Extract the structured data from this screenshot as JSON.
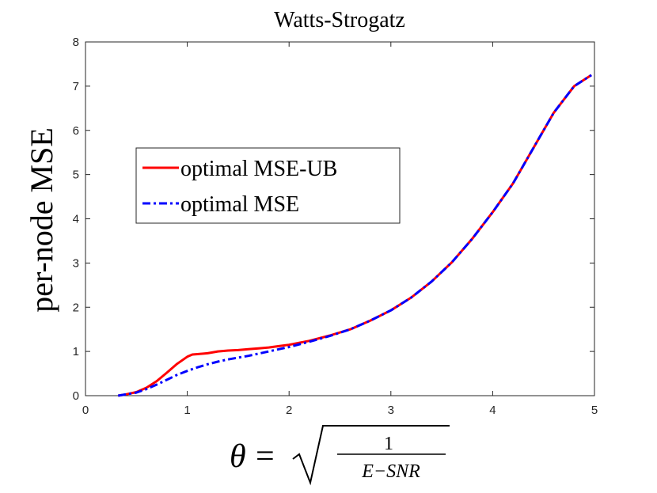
{
  "chart_data": {
    "type": "line",
    "title": "Watts-Strogatz",
    "ylabel": "per-node MSE",
    "xlabel": {
      "theta": "θ",
      "equals": "=",
      "numerator": "1",
      "denominator": "E−SNR"
    },
    "xlim": [
      0,
      5
    ],
    "ylim": [
      0,
      8
    ],
    "xticks": [
      "0",
      "1",
      "2",
      "3",
      "4",
      "5"
    ],
    "yticks": [
      "0",
      "1",
      "2",
      "3",
      "4",
      "5",
      "6",
      "7",
      "8"
    ],
    "legend": {
      "placement": "center-left",
      "entries": [
        "optimal MSE-UB",
        "optimal MSE"
      ]
    },
    "series": [
      {
        "name": "optimal MSE-UB",
        "color": "#ff0000",
        "style": "solid",
        "x": [
          0.32,
          0.4,
          0.5,
          0.6,
          0.7,
          0.8,
          0.9,
          1.0,
          1.05,
          1.1,
          1.2,
          1.3,
          1.4,
          1.5,
          1.6,
          1.7,
          1.8,
          1.9,
          2.0,
          2.2,
          2.4,
          2.6,
          2.8,
          3.0,
          3.2,
          3.4,
          3.6,
          3.8,
          4.0,
          4.2,
          4.4,
          4.6,
          4.8,
          4.97
        ],
        "y": [
          0.0,
          0.03,
          0.08,
          0.18,
          0.33,
          0.52,
          0.72,
          0.88,
          0.93,
          0.94,
          0.96,
          1.0,
          1.02,
          1.03,
          1.05,
          1.07,
          1.09,
          1.12,
          1.15,
          1.24,
          1.36,
          1.5,
          1.7,
          1.93,
          2.22,
          2.58,
          3.02,
          3.55,
          4.15,
          4.8,
          5.6,
          6.4,
          7.0,
          7.25
        ]
      },
      {
        "name": "optimal MSE",
        "color": "#0000ff",
        "style": "dashdot",
        "x": [
          0.32,
          0.4,
          0.5,
          0.6,
          0.7,
          0.8,
          0.9,
          1.0,
          1.1,
          1.2,
          1.3,
          1.4,
          1.5,
          1.6,
          1.7,
          1.8,
          1.9,
          2.0,
          2.2,
          2.4,
          2.6,
          2.8,
          3.0,
          3.2,
          3.4,
          3.6,
          3.8,
          4.0,
          4.2,
          4.4,
          4.6,
          4.8,
          4.97
        ],
        "y": [
          0.0,
          0.03,
          0.07,
          0.15,
          0.25,
          0.36,
          0.47,
          0.56,
          0.64,
          0.71,
          0.77,
          0.82,
          0.86,
          0.9,
          0.95,
          1.0,
          1.05,
          1.1,
          1.22,
          1.35,
          1.5,
          1.7,
          1.93,
          2.22,
          2.58,
          3.02,
          3.55,
          4.15,
          4.8,
          5.6,
          6.4,
          7.0,
          7.25
        ]
      }
    ]
  }
}
